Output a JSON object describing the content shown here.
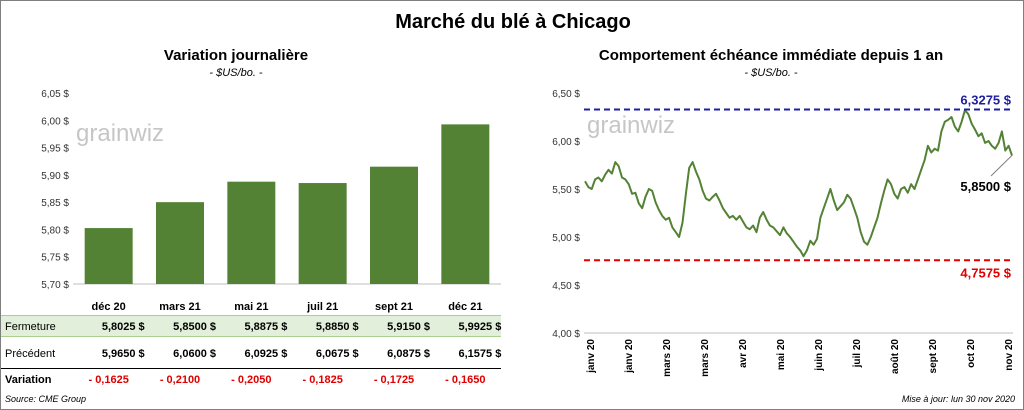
{
  "title": "Marché du blé à Chicago",
  "left": {
    "title": "Variation journalière",
    "unit": "- $US/bo. -"
  },
  "right": {
    "title": "Comportement échéance immédiate depuis 1 an",
    "unit": "- $US/bo. -"
  },
  "watermark": "grainwiz",
  "table": {
    "rows": [
      {
        "label": "Fermeture",
        "values": [
          "5,8025 $",
          "5,8500 $",
          "5,8875 $",
          "5,8850 $",
          "5,9150 $",
          "5,9925 $"
        ]
      },
      {
        "label": "Précédent",
        "values": [
          "5,9650 $",
          "6,0600 $",
          "6,0925 $",
          "6,0675 $",
          "6,0875 $",
          "6,1575 $"
        ]
      },
      {
        "label": "Variation",
        "values": [
          "- 0,1625",
          "- 0,2100",
          "- 0,2050",
          "- 0,1825",
          "- 0,1725",
          "- 0,1650"
        ]
      }
    ]
  },
  "footer": {
    "source": "Source: CME Group",
    "updated": "Mise à jour: lun 30 nov 2020"
  },
  "colors": {
    "bar": "#548235",
    "line": "#548235",
    "high": "#1f1fa0",
    "low": "#e00000",
    "fermeture_bg": "#e2efda"
  },
  "chart_data": [
    {
      "type": "bar",
      "categories": [
        "déc 20",
        "mars 21",
        "mai 21",
        "juil 21",
        "sept 21",
        "déc 21"
      ],
      "values": [
        5.8025,
        5.85,
        5.8875,
        5.885,
        5.915,
        5.9925
      ],
      "ylim": [
        5.7,
        6.05
      ],
      "yticks": [
        "5,70 $",
        "5,75 $",
        "5,80 $",
        "5,85 $",
        "5,90 $",
        "5,95 $",
        "6,00 $",
        "6,05 $"
      ],
      "grid": false
    },
    {
      "type": "line",
      "ylim": [
        4.0,
        6.5
      ],
      "yticks": [
        "4,00 $",
        "4,50 $",
        "5,00 $",
        "5,50 $",
        "6,00 $",
        "6,50 $"
      ],
      "xticks": [
        "janv 20",
        "janv 20",
        "mars 20",
        "mars 20",
        "avr 20",
        "mai 20",
        "juin 20",
        "juil 20",
        "août 20",
        "sept 20",
        "oct 20",
        "nov 20"
      ],
      "max_line": {
        "value": 6.3275,
        "label": "6,3275 $"
      },
      "min_line": {
        "value": 4.7575,
        "label": "4,7575 $"
      },
      "last_label": "5,8500 $",
      "values": [
        5.58,
        5.52,
        5.5,
        5.6,
        5.62,
        5.58,
        5.65,
        5.7,
        5.66,
        5.78,
        5.74,
        5.62,
        5.6,
        5.55,
        5.45,
        5.46,
        5.35,
        5.3,
        5.42,
        5.5,
        5.48,
        5.36,
        5.28,
        5.22,
        5.18,
        5.2,
        5.1,
        5.05,
        5.0,
        5.15,
        5.45,
        5.72,
        5.78,
        5.68,
        5.6,
        5.48,
        5.4,
        5.38,
        5.42,
        5.45,
        5.38,
        5.3,
        5.25,
        5.2,
        5.22,
        5.18,
        5.22,
        5.16,
        5.1,
        5.08,
        5.12,
        5.05,
        5.2,
        5.26,
        5.18,
        5.12,
        5.1,
        5.06,
        5.02,
        5.1,
        5.04,
        5.0,
        4.95,
        4.9,
        4.86,
        4.8,
        4.86,
        4.96,
        4.92,
        4.98,
        5.2,
        5.3,
        5.4,
        5.5,
        5.38,
        5.28,
        5.32,
        5.36,
        5.44,
        5.4,
        5.3,
        5.2,
        5.05,
        4.95,
        4.92,
        5.0,
        5.1,
        5.2,
        5.35,
        5.48,
        5.6,
        5.55,
        5.45,
        5.4,
        5.5,
        5.52,
        5.46,
        5.55,
        5.5,
        5.6,
        5.7,
        5.8,
        5.95,
        5.88,
        5.92,
        5.9,
        6.1,
        6.2,
        6.22,
        6.25,
        6.15,
        6.1,
        6.2,
        6.32,
        6.28,
        6.18,
        6.12,
        6.05,
        6.08,
        5.98,
        6.0,
        5.95,
        5.92,
        5.98,
        6.1,
        5.9,
        5.95,
        5.85
      ]
    }
  ]
}
